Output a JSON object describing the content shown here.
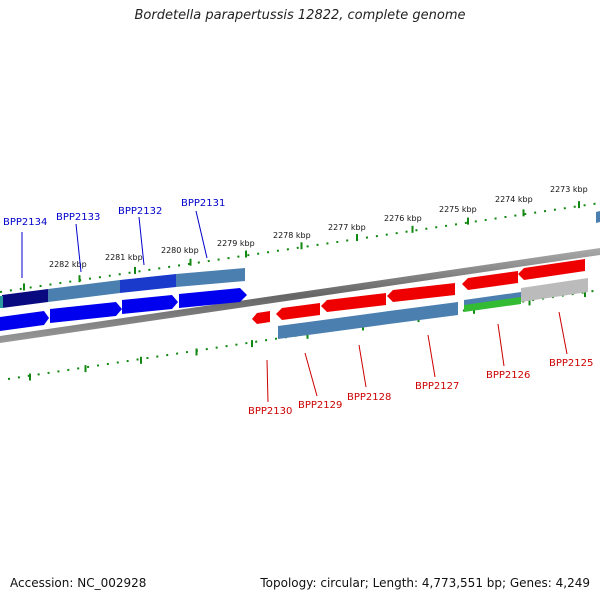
{
  "title": "Bordetella parapertussis 12822, complete genome",
  "footer": {
    "accession": "Accession: NC_002928",
    "summary": "Topology: circular; Length: 4,773,551 bp; Genes: 4,249"
  },
  "colors": {
    "forward_gene": "#0000ee",
    "forward_gene_dark": "#0a0a80",
    "reverse_gene": "#ee0000",
    "cds_steel": "#4a7fb0",
    "grey_feature": "#bbbbbb",
    "green_feature": "#33bb33",
    "tick_green": "#118811",
    "backbone": "#777777",
    "forward_label": "#0000cc",
    "reverse_label": "#cc0000"
  },
  "kbp_labels": [
    "2282 kbp",
    "2281 kbp",
    "2280 kbp",
    "2279 kbp",
    "2278 kbp",
    "2277 kbp",
    "2276 kbp",
    "2275 kbp",
    "2274 kbp",
    "2273 kbp"
  ],
  "forward_labels": [
    "BPP2134",
    "BPP2133",
    "BPP2132",
    "BPP2131"
  ],
  "reverse_labels": [
    "BPP2130",
    "BPP2129",
    "BPP2128",
    "BPP2127",
    "BPP2126",
    "BPP2125"
  ]
}
